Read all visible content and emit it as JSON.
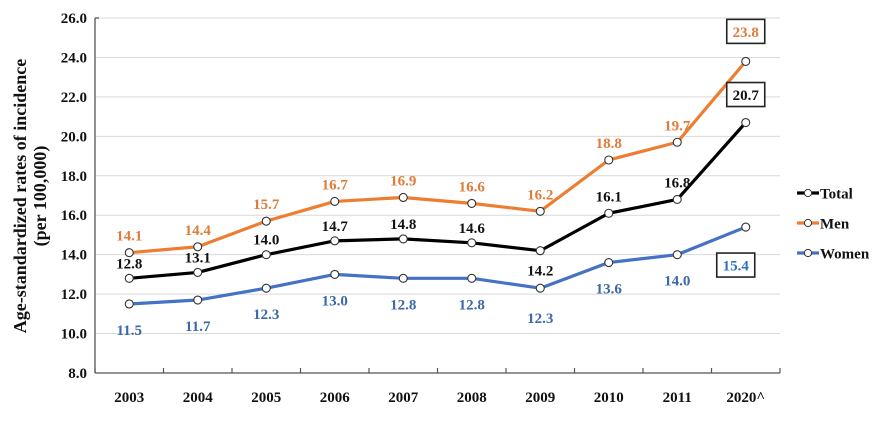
{
  "chart_data": {
    "type": "line",
    "title": "",
    "xlabel": "",
    "ylabel": "Age-standardized rates of incidence",
    "ylabel_line2": "(per 100,000)",
    "categories": [
      "2003",
      "2004",
      "2005",
      "2006",
      "2007",
      "2008",
      "2009",
      "2010",
      "2011",
      "2020^"
    ],
    "ylim": [
      8.0,
      26.0
    ],
    "yticks": [
      "8.0",
      "10.0",
      "12.0",
      "14.0",
      "16.0",
      "18.0",
      "20.0",
      "22.0",
      "24.0",
      "26.0"
    ],
    "grid": true,
    "legend_position": "right",
    "series": [
      {
        "name": "Total",
        "color": "#000000",
        "values": [
          12.8,
          13.1,
          14.0,
          14.7,
          14.8,
          14.6,
          14.2,
          16.1,
          16.8,
          20.7
        ],
        "labels": [
          "12.8",
          "13.1",
          "14.0",
          "14.7",
          "14.8",
          "14.6",
          "14.2",
          "16.1",
          "16.8",
          "20.7"
        ],
        "boxed_last": true
      },
      {
        "name": "Men",
        "color": "#ED7D31",
        "values": [
          14.1,
          14.4,
          15.7,
          16.7,
          16.9,
          16.6,
          16.2,
          18.8,
          19.7,
          23.8
        ],
        "labels": [
          "14.1",
          "14.4",
          "15.7",
          "16.7",
          "16.9",
          "16.6",
          "16.2",
          "18.8",
          "19.7",
          "23.8"
        ],
        "boxed_last": true
      },
      {
        "name": "Women",
        "color": "#4472C4",
        "values": [
          11.5,
          11.7,
          12.3,
          13.0,
          12.8,
          12.8,
          12.3,
          13.6,
          14.0,
          15.4
        ],
        "labels": [
          "11.5",
          "11.7",
          "12.3",
          "13.0",
          "12.8",
          "12.8",
          "12.3",
          "13.6",
          "14.0",
          "15.4"
        ],
        "boxed_last": true
      }
    ]
  },
  "label_colors": {
    "Total": "#111111",
    "Men": "#E07B39",
    "Women": "#3C67A8",
    "Women_boxed": "#2E75B6"
  }
}
